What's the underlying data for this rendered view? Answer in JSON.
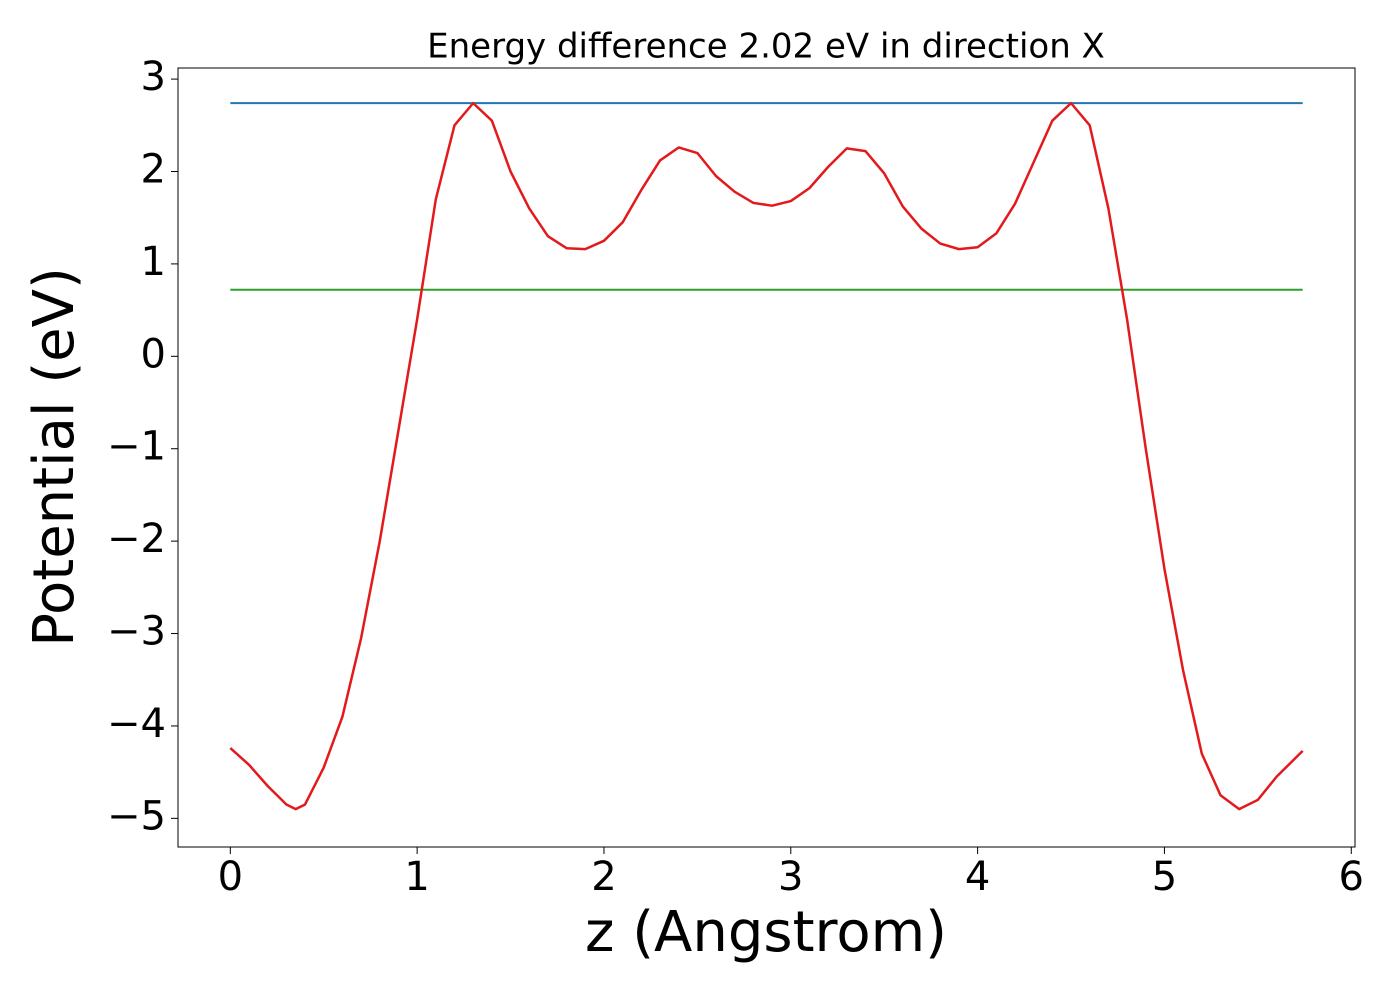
{
  "chart_data": {
    "type": "line",
    "title": "Energy difference 2.02 eV in direction X",
    "xlabel": "z (Angstrom)",
    "ylabel": "Potential (eV)",
    "x": [
      0,
      0.1,
      0.2,
      0.3,
      0.35,
      0.4,
      0.5,
      0.6,
      0.7,
      0.8,
      0.9,
      1.0,
      1.1,
      1.2,
      1.3,
      1.4,
      1.5,
      1.6,
      1.7,
      1.8,
      1.9,
      2.0,
      2.1,
      2.2,
      2.3,
      2.4,
      2.5,
      2.6,
      2.7,
      2.8,
      2.9,
      3.0,
      3.1,
      3.2,
      3.3,
      3.4,
      3.5,
      3.6,
      3.7,
      3.8,
      3.9,
      4.0,
      4.1,
      4.2,
      4.3,
      4.4,
      4.5,
      4.6,
      4.7,
      4.8,
      4.9,
      5.0,
      5.1,
      5.2,
      5.3,
      5.4,
      5.5,
      5.6,
      5.7,
      5.74
    ],
    "series": [
      {
        "color": "#e31a1c",
        "values": [
          -4.24,
          -4.42,
          -4.65,
          -4.85,
          -4.9,
          -4.85,
          -4.45,
          -3.9,
          -3.05,
          -2.0,
          -0.8,
          0.4,
          1.7,
          2.5,
          2.74,
          2.55,
          2.0,
          1.6,
          1.3,
          1.17,
          1.16,
          1.25,
          1.45,
          1.8,
          2.12,
          2.26,
          2.2,
          1.95,
          1.78,
          1.66,
          1.63,
          1.68,
          1.82,
          2.05,
          2.25,
          2.22,
          1.98,
          1.62,
          1.38,
          1.22,
          1.16,
          1.18,
          1.33,
          1.65,
          2.1,
          2.55,
          2.74,
          2.5,
          1.6,
          0.4,
          -1.0,
          -2.3,
          -3.4,
          -4.3,
          -4.75,
          -4.9,
          -4.8,
          -4.55,
          -4.35,
          -4.27
        ]
      }
    ],
    "hlines": [
      {
        "y": 2.74,
        "xmin": 0,
        "xmax": 5.74,
        "color": "#1f77b4"
      },
      {
        "y": 0.72,
        "xmin": 0,
        "xmax": 5.74,
        "color": "#2ca02c"
      }
    ],
    "xlim": [
      -0.28,
      6.02
    ],
    "ylim": [
      -5.31,
      3.12
    ],
    "xticks": [
      0,
      1,
      2,
      3,
      4,
      5,
      6
    ],
    "yticks": [
      {
        "value": -5,
        "label": "−5"
      },
      {
        "value": -4,
        "label": "−4"
      },
      {
        "value": -3,
        "label": "−3"
      },
      {
        "value": -2,
        "label": "−2"
      },
      {
        "value": -1,
        "label": "−1"
      },
      0,
      1,
      2,
      3
    ],
    "grid": false
  }
}
